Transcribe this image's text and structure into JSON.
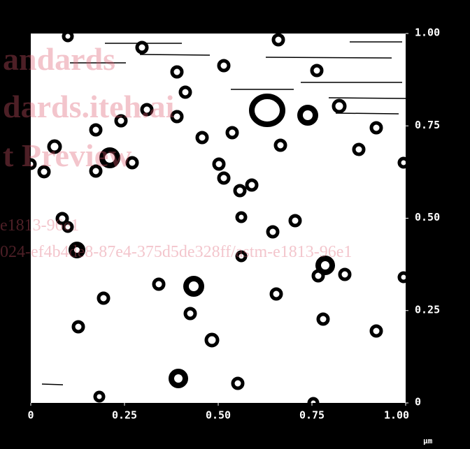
{
  "chart_data": {
    "type": "image",
    "xlim": [
      0,
      1
    ],
    "ylim": [
      0,
      1
    ],
    "xticks": [
      0,
      0.25,
      {
        "value": 0.5,
        "label": "0.50"
      },
      0.75,
      {
        "value": 1,
        "label": "1.00"
      }
    ],
    "yticks": [
      0,
      0.25,
      {
        "value": 0.5,
        "label": "0.50"
      },
      0.75,
      {
        "value": 1,
        "label": "1.00"
      }
    ],
    "xlabel": "μm",
    "watermark": [
      "andards",
      "dards.iteh.ai",
      "t Preview",
      "e1813-96e1",
      "024-ef4b4de8-87e4-375d5de328ff/astm-e1813-96e1"
    ]
  }
}
